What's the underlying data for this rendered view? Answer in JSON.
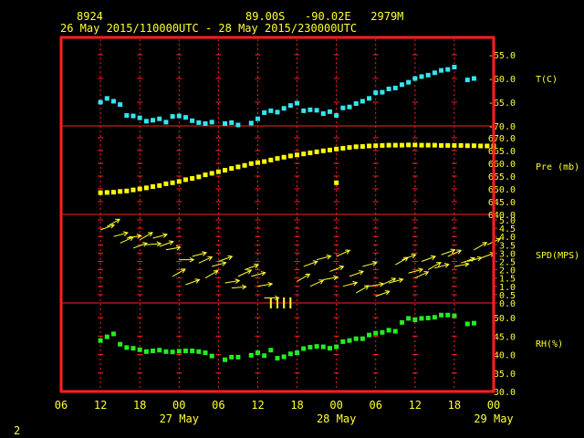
{
  "header": {
    "station_id": "8924",
    "location": "89.00S   -90.02E   2979M",
    "time_range": "26 May 2015/110000UTC - 28 May 2015/230000UTC"
  },
  "footer": {
    "page_number": "2"
  },
  "colors": {
    "frame": "#ff2020",
    "text": "#ffff33",
    "temperature": "#33e6f0",
    "pressure": "#ffff00",
    "wind": "#ffff33",
    "rh": "#22ee22"
  },
  "chart_data": {
    "type": "scatter",
    "x_axis": {
      "hour_ticks": [
        "06",
        "12",
        "18",
        "00",
        "06",
        "12",
        "18",
        "00",
        "06",
        "12",
        "18",
        "00"
      ],
      "range_hours": [
        0,
        66
      ],
      "day_labels": [
        {
          "label": "27 May",
          "hour": 18
        },
        {
          "label": "28 May",
          "hour": 42
        },
        {
          "label": "29 May",
          "hour": 66
        }
      ]
    },
    "panels": [
      {
        "name": "temperature",
        "label": "T(C)",
        "ylim": [
          -70,
          -52.5
        ],
        "ticks": [
          -55,
          -60,
          -65,
          -70
        ],
        "tick_labels": [
          "-55.0",
          "-60.0",
          "-65.0",
          "-70.0"
        ],
        "x": [
          6,
          7,
          8,
          9,
          10,
          11,
          12,
          13,
          14,
          15,
          16,
          17,
          18,
          19,
          20,
          21,
          22,
          23,
          25,
          26,
          27,
          29,
          30,
          31,
          32,
          33,
          34,
          35,
          36,
          37,
          38,
          39,
          40,
          41,
          42,
          43,
          44,
          45,
          46,
          47,
          48,
          49,
          50,
          51,
          52,
          53,
          54,
          55,
          56,
          57,
          58,
          59,
          60,
          62,
          63
        ],
        "values": [
          -65.0,
          -64.2,
          -64.8,
          -65.5,
          -67.8,
          -67.9,
          -68.3,
          -69.0,
          -68.8,
          -68.5,
          -69.2,
          -68.0,
          -67.9,
          -68.2,
          -68.9,
          -69.3,
          -69.5,
          -69.2,
          -69.5,
          -69.3,
          -69.8,
          -69.4,
          -68.5,
          -67.2,
          -66.8,
          -67.1,
          -66.3,
          -65.7,
          -65.2,
          -66.8,
          -66.6,
          -66.7,
          -67.4,
          -67.0,
          -67.8,
          -66.2,
          -66.0,
          -65.3,
          -64.8,
          -64.2,
          -63.0,
          -62.9,
          -62.2,
          -62.0,
          -61.3,
          -60.8,
          -60.0,
          -59.6,
          -59.3,
          -58.8,
          -58.3,
          -58.1,
          -57.6,
          -60.3,
          -60.0
        ]
      },
      {
        "name": "pressure",
        "label": "Pre (mb)",
        "ylim": [
          640,
          672.5
        ],
        "ticks": [
          640,
          645,
          650,
          655,
          660,
          665,
          670
        ],
        "tick_labels": [
          "640.0",
          "645.0",
          "650.0",
          "655.0",
          "660.0",
          "665.0",
          "670.0"
        ],
        "x": [
          6,
          7,
          8,
          9,
          10,
          11,
          12,
          13,
          14,
          15,
          16,
          17,
          18,
          19,
          20,
          21,
          22,
          23,
          24,
          25,
          26,
          27,
          28,
          29,
          30,
          31,
          32,
          33,
          34,
          35,
          36,
          37,
          38,
          39,
          40,
          41,
          42,
          43,
          44,
          45,
          46,
          47,
          48,
          49,
          50,
          51,
          52,
          53,
          54,
          55,
          56,
          57,
          58,
          59,
          60,
          61,
          62,
          63,
          64,
          65,
          66
        ],
        "values": [
          648.5,
          648.6,
          648.7,
          649.0,
          649.2,
          649.6,
          650.0,
          650.4,
          650.9,
          651.3,
          652.0,
          652.4,
          652.9,
          653.6,
          654.1,
          654.7,
          655.5,
          656.1,
          656.7,
          657.3,
          658.0,
          658.6,
          659.2,
          659.9,
          660.3,
          660.7,
          661.3,
          661.9,
          662.4,
          662.9,
          663.3,
          663.7,
          664.1,
          664.5,
          664.9,
          665.2,
          665.6,
          665.9,
          666.2,
          666.5,
          666.6,
          666.8,
          666.9,
          667.0,
          667.1,
          667.1,
          667.1,
          667.2,
          667.2,
          667.1,
          667.1,
          667.1,
          667.0,
          667.0,
          667.0,
          667.0,
          666.9,
          666.9,
          666.8,
          666.8,
          666.8
        ],
        "outlier": {
          "x": 42,
          "value": 652.4
        }
      },
      {
        "name": "wind",
        "label": "SPD(MPS)",
        "ylim": [
          0,
          5
        ],
        "ticks": [
          0,
          0.5,
          1,
          1.5,
          2,
          2.5,
          3,
          3.5,
          4,
          4.5,
          5
        ],
        "tick_labels": [
          "0.0",
          "0.5",
          "1.0",
          "1.5",
          "2.0",
          "2.5",
          "3.0",
          "3.5",
          "4.0",
          "4.5",
          "5.0"
        ],
        "x": [
          6,
          7,
          8,
          9,
          10,
          11,
          12,
          13,
          14,
          15,
          16,
          17,
          18,
          19,
          20,
          21,
          22,
          23,
          24,
          25,
          26,
          27,
          28,
          29,
          30,
          31,
          32,
          33,
          34,
          35,
          36,
          37,
          38,
          39,
          40,
          41,
          42,
          43,
          44,
          45,
          46,
          47,
          48,
          49,
          50,
          51,
          52,
          53,
          54,
          55,
          56,
          57,
          58,
          59,
          60,
          61,
          62,
          63,
          64,
          65
        ],
        "values": [
          4.4,
          4.6,
          4.0,
          3.6,
          3.9,
          3.3,
          3.8,
          3.5,
          3.9,
          3.4,
          3.2,
          1.6,
          2.6,
          1.1,
          2.8,
          2.4,
          1.5,
          2.2,
          2.5,
          1.2,
          0.9,
          1.6,
          2.0,
          1.6,
          1.0,
          0.3,
          0.0,
          0.0,
          0.0,
          0.0,
          1.3,
          2.2,
          1.0,
          2.6,
          1.4,
          1.9,
          2.8,
          1.0,
          1.6,
          0.6,
          2.2,
          1.0,
          0.4,
          1.1,
          1.2,
          2.3,
          2.6,
          1.8,
          1.5,
          2.5,
          2.0,
          2.1,
          2.9,
          2.8,
          2.2,
          2.4,
          2.5,
          3.2,
          2.7,
          3.5
        ],
        "direction_deg": [
          70,
          60,
          75,
          65,
          80,
          70,
          60,
          85,
          75,
          70,
          80,
          60,
          90,
          70,
          75,
          65,
          60,
          75,
          70,
          80,
          85,
          65,
          70,
          75,
          80,
          90,
          0,
          0,
          0,
          0,
          60,
          70,
          65,
          75,
          80,
          70,
          65,
          75,
          70,
          60,
          75,
          80,
          70,
          65,
          75,
          60,
          70,
          75,
          65,
          70,
          60,
          75,
          70,
          65,
          80,
          70,
          75,
          60,
          70,
          65
        ]
      },
      {
        "name": "rh",
        "label": "RH(%)",
        "ylim": [
          30,
          52.5
        ],
        "ticks": [
          30,
          35,
          40,
          45,
          50
        ],
        "tick_labels": [
          "30.0",
          "35.0",
          "40.0",
          "45.0",
          "50.0"
        ],
        "x": [
          6,
          7,
          8,
          9,
          10,
          11,
          12,
          13,
          14,
          15,
          16,
          17,
          18,
          19,
          20,
          21,
          22,
          23,
          25,
          26,
          27,
          29,
          30,
          31,
          32,
          33,
          34,
          35,
          36,
          37,
          38,
          39,
          40,
          41,
          42,
          43,
          44,
          45,
          46,
          47,
          48,
          49,
          50,
          51,
          52,
          53,
          54,
          55,
          56,
          57,
          58,
          59,
          60,
          62,
          63
        ],
        "values": [
          43.8,
          44.8,
          45.6,
          42.8,
          41.9,
          41.7,
          41.3,
          40.8,
          41.0,
          41.2,
          40.8,
          40.7,
          40.9,
          41.0,
          41.0,
          40.8,
          40.5,
          39.6,
          38.6,
          39.3,
          39.3,
          39.8,
          40.5,
          39.7,
          41.2,
          39.0,
          39.4,
          40.2,
          40.5,
          41.6,
          42.0,
          42.2,
          42.1,
          41.7,
          42.1,
          43.5,
          43.8,
          44.3,
          44.3,
          45.3,
          45.8,
          46.0,
          46.6,
          46.3,
          48.7,
          49.8,
          49.4,
          49.8,
          49.9,
          50.1,
          50.7,
          50.7,
          50.5,
          48.3,
          48.5
        ]
      }
    ]
  }
}
